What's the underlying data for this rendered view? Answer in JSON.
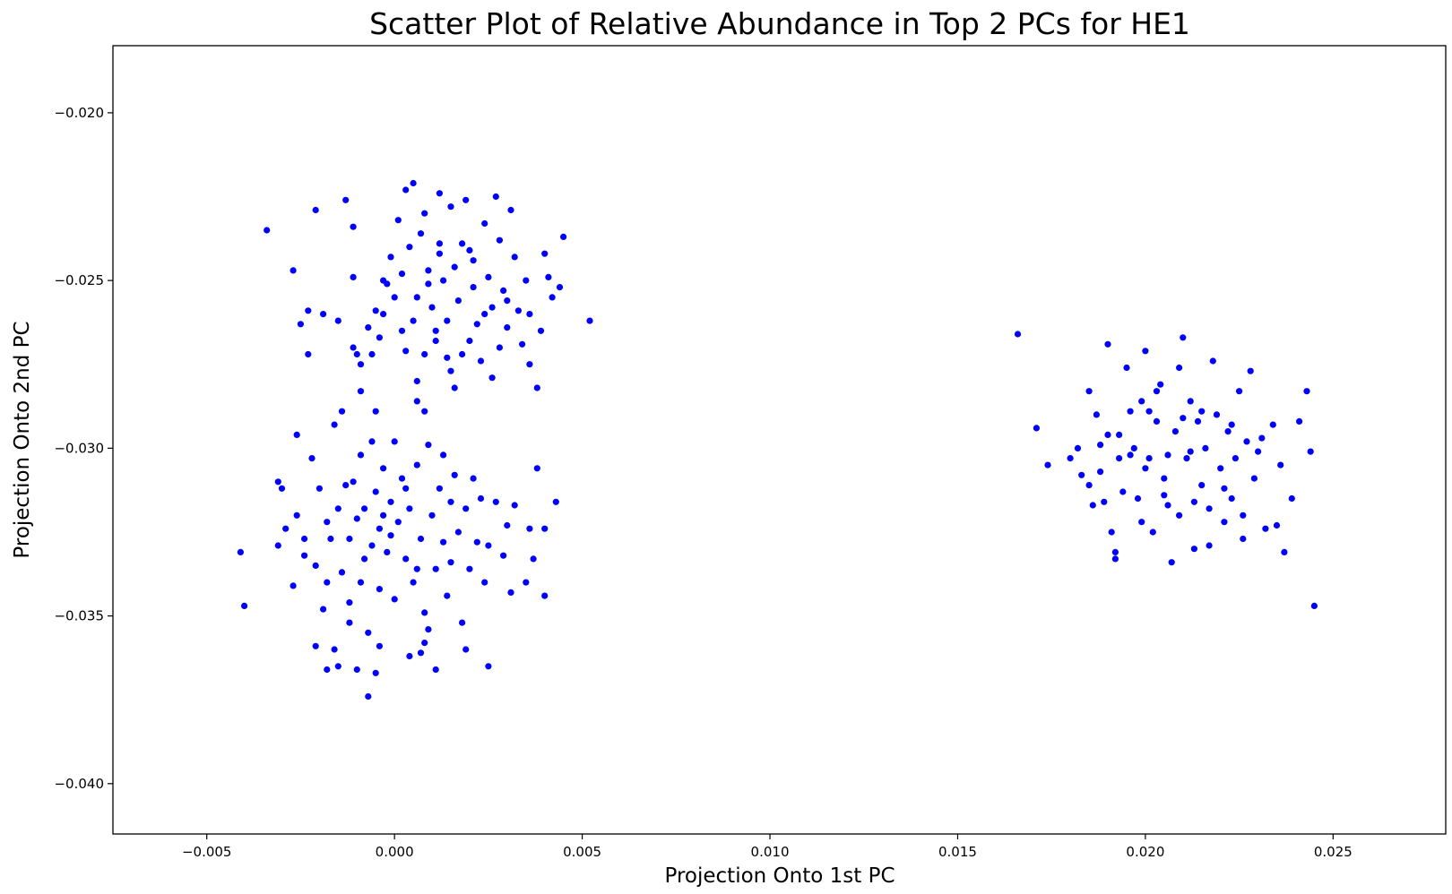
{
  "chart_data": {
    "type": "scatter",
    "title": "Scatter Plot of Relative Abundance in Top 2 PCs for HE1",
    "xlabel": "Projection Onto 1st PC",
    "ylabel": "Projection Onto 2nd PC",
    "xlim": [
      -0.0075,
      0.028
    ],
    "ylim": [
      -0.0415,
      -0.018
    ],
    "xticks": [
      -0.005,
      0.0,
      0.005,
      0.01,
      0.015,
      0.02,
      0.025
    ],
    "xtick_labels": [
      "−0.005",
      "0.000",
      "0.005",
      "0.010",
      "0.015",
      "0.020",
      "0.025"
    ],
    "yticks": [
      -0.02,
      -0.025,
      -0.03,
      -0.035,
      -0.04
    ],
    "ytick_labels": [
      "−0.020",
      "−0.025",
      "−0.030",
      "−0.035",
      "−0.040"
    ],
    "grid": false,
    "legend": false,
    "marker_color": "#0000ff",
    "series": [
      {
        "points": [
          [
            -0.0034,
            -0.0235
          ],
          [
            -0.0027,
            -0.0247
          ],
          [
            -0.0021,
            -0.0229
          ],
          [
            -0.0013,
            -0.0226
          ],
          [
            -0.0011,
            -0.0249
          ],
          [
            -0.0011,
            -0.0234
          ],
          [
            -0.0023,
            -0.0259
          ],
          [
            -0.0025,
            -0.0263
          ],
          [
            -0.0019,
            -0.026
          ],
          [
            -0.0015,
            -0.0262
          ],
          [
            -0.0023,
            -0.0272
          ],
          [
            -0.0011,
            -0.027
          ],
          [
            -0.001,
            -0.0272
          ],
          [
            -0.0009,
            -0.0275
          ],
          [
            -0.0007,
            -0.0264
          ],
          [
            -0.0005,
            -0.0259
          ],
          [
            -0.0004,
            -0.0267
          ],
          [
            -0.0003,
            -0.026
          ],
          [
            -0.0002,
            -0.0251
          ],
          [
            -0.0001,
            -0.0243
          ],
          [
            0.0,
            -0.0255
          ],
          [
            0.0001,
            -0.0232
          ],
          [
            0.0002,
            -0.0248
          ],
          [
            0.0003,
            -0.0223
          ],
          [
            0.0004,
            -0.024
          ],
          [
            0.0005,
            -0.0262
          ],
          [
            0.0005,
            -0.0221
          ],
          [
            0.0006,
            -0.0255
          ],
          [
            0.0007,
            -0.0236
          ],
          [
            0.0008,
            -0.023
          ],
          [
            0.0009,
            -0.0247
          ],
          [
            0.001,
            -0.0258
          ],
          [
            0.0011,
            -0.0265
          ],
          [
            0.0012,
            -0.0224
          ],
          [
            0.0012,
            -0.0239
          ],
          [
            0.0013,
            -0.025
          ],
          [
            0.0014,
            -0.0262
          ],
          [
            0.0015,
            -0.0228
          ],
          [
            0.0016,
            -0.0246
          ],
          [
            0.0017,
            -0.0256
          ],
          [
            0.0018,
            -0.0272
          ],
          [
            0.0019,
            -0.0226
          ],
          [
            0.002,
            -0.0241
          ],
          [
            0.0021,
            -0.0252
          ],
          [
            0.0022,
            -0.0263
          ],
          [
            0.0023,
            -0.0274
          ],
          [
            0.0024,
            -0.0233
          ],
          [
            0.0025,
            -0.0249
          ],
          [
            0.0026,
            -0.0258
          ],
          [
            0.0027,
            -0.0225
          ],
          [
            0.0028,
            -0.0238
          ],
          [
            0.0029,
            -0.0253
          ],
          [
            0.003,
            -0.0264
          ],
          [
            0.0031,
            -0.0229
          ],
          [
            0.0032,
            -0.0243
          ],
          [
            0.0033,
            -0.0259
          ],
          [
            0.0035,
            -0.025
          ],
          [
            0.0036,
            -0.0275
          ],
          [
            0.0038,
            -0.0282
          ],
          [
            0.0039,
            -0.0265
          ],
          [
            0.004,
            -0.0242
          ],
          [
            0.0041,
            -0.0249
          ],
          [
            0.0042,
            -0.0255
          ],
          [
            0.0044,
            -0.0252
          ],
          [
            0.0045,
            -0.0237
          ],
          [
            0.0052,
            -0.0262
          ],
          [
            0.0003,
            -0.0271
          ],
          [
            0.0006,
            -0.028
          ],
          [
            0.0008,
            -0.0272
          ],
          [
            0.0011,
            -0.0268
          ],
          [
            0.0015,
            -0.0277
          ],
          [
            0.0016,
            -0.0282
          ],
          [
            0.002,
            -0.0268
          ],
          [
            0.0026,
            -0.0279
          ],
          [
            0.0028,
            -0.027
          ],
          [
            0.0034,
            -0.0269
          ],
          [
            0.0006,
            -0.0286
          ],
          [
            0.0008,
            -0.0289
          ],
          [
            -0.0009,
            -0.0283
          ],
          [
            -0.0003,
            -0.025
          ],
          [
            0.0012,
            -0.0242
          ],
          [
            0.0018,
            -0.0239
          ],
          [
            0.0024,
            -0.026
          ],
          [
            0.0009,
            -0.0251
          ],
          [
            0.003,
            -0.0256
          ],
          [
            0.0036,
            -0.026
          ],
          [
            0.0002,
            -0.0265
          ],
          [
            0.0014,
            -0.0273
          ],
          [
            -0.0006,
            -0.0272
          ],
          [
            0.0021,
            -0.0244
          ],
          [
            -0.0041,
            -0.0331
          ],
          [
            -0.004,
            -0.0347
          ],
          [
            -0.0031,
            -0.031
          ],
          [
            -0.003,
            -0.0312
          ],
          [
            -0.0031,
            -0.0329
          ],
          [
            -0.0029,
            -0.0324
          ],
          [
            -0.0027,
            -0.0341
          ],
          [
            -0.0026,
            -0.0296
          ],
          [
            -0.0026,
            -0.032
          ],
          [
            -0.0024,
            -0.0327
          ],
          [
            -0.0022,
            -0.0303
          ],
          [
            -0.0021,
            -0.0335
          ],
          [
            -0.002,
            -0.0312
          ],
          [
            -0.0019,
            -0.0348
          ],
          [
            -0.0018,
            -0.0322
          ],
          [
            -0.0017,
            -0.0327
          ],
          [
            -0.0016,
            -0.0293
          ],
          [
            -0.0016,
            -0.036
          ],
          [
            -0.0015,
            -0.0318
          ],
          [
            -0.0014,
            -0.0289
          ],
          [
            -0.0014,
            -0.0337
          ],
          [
            -0.0013,
            -0.0311
          ],
          [
            -0.0012,
            -0.0346
          ],
          [
            -0.0012,
            -0.0327
          ],
          [
            -0.0011,
            -0.031
          ],
          [
            -0.001,
            -0.0321
          ],
          [
            -0.0009,
            -0.0302
          ],
          [
            -0.0009,
            -0.034
          ],
          [
            -0.0008,
            -0.0318
          ],
          [
            -0.0007,
            -0.0355
          ],
          [
            -0.0006,
            -0.0298
          ],
          [
            -0.0006,
            -0.0329
          ],
          [
            -0.0005,
            -0.0313
          ],
          [
            -0.0004,
            -0.0342
          ],
          [
            -0.0004,
            -0.0324
          ],
          [
            -0.0003,
            -0.0306
          ],
          [
            -0.0002,
            -0.0331
          ],
          [
            -0.0001,
            -0.0316
          ],
          [
            0.0,
            -0.0345
          ],
          [
            0.0001,
            -0.0322
          ],
          [
            0.0002,
            -0.0309
          ],
          [
            0.0003,
            -0.0333
          ],
          [
            0.0004,
            -0.0318
          ],
          [
            0.0005,
            -0.034
          ],
          [
            0.0006,
            -0.0305
          ],
          [
            0.0007,
            -0.0327
          ],
          [
            0.0008,
            -0.0349
          ],
          [
            0.0009,
            -0.0299
          ],
          [
            0.001,
            -0.032
          ],
          [
            0.0011,
            -0.0336
          ],
          [
            0.0012,
            -0.0312
          ],
          [
            0.0013,
            -0.0328
          ],
          [
            0.0014,
            -0.0344
          ],
          [
            0.0015,
            -0.0316
          ],
          [
            0.0016,
            -0.0308
          ],
          [
            0.0017,
            -0.0325
          ],
          [
            0.0018,
            -0.0352
          ],
          [
            0.0019,
            -0.0318
          ],
          [
            0.002,
            -0.0336
          ],
          [
            0.0021,
            -0.0309
          ],
          [
            0.0022,
            -0.0328
          ],
          [
            0.0023,
            -0.0315
          ],
          [
            0.0024,
            -0.034
          ],
          [
            0.0025,
            -0.0329
          ],
          [
            0.0027,
            -0.0316
          ],
          [
            0.0029,
            -0.0332
          ],
          [
            0.003,
            -0.0323
          ],
          [
            0.0031,
            -0.0343
          ],
          [
            0.0032,
            -0.0317
          ],
          [
            0.0036,
            -0.0324
          ],
          [
            0.0037,
            -0.0333
          ],
          [
            0.0038,
            -0.0306
          ],
          [
            0.004,
            -0.0324
          ],
          [
            0.004,
            -0.0344
          ],
          [
            0.0043,
            -0.0316
          ],
          [
            0.0035,
            -0.034
          ],
          [
            -0.0021,
            -0.0359
          ],
          [
            -0.0018,
            -0.0366
          ],
          [
            -0.0015,
            -0.0365
          ],
          [
            -0.0007,
            -0.0374
          ],
          [
            -0.0005,
            -0.0367
          ],
          [
            -0.0004,
            -0.0359
          ],
          [
            0.0007,
            -0.0361
          ],
          [
            0.0008,
            -0.0358
          ],
          [
            0.0011,
            -0.0366
          ],
          [
            0.0019,
            -0.036
          ],
          [
            0.0025,
            -0.0365
          ],
          [
            -0.0018,
            -0.034
          ],
          [
            -0.0024,
            -0.0332
          ],
          [
            -0.001,
            -0.0366
          ],
          [
            0.0004,
            -0.0362
          ],
          [
            0.0009,
            -0.0354
          ],
          [
            -0.0012,
            -0.0352
          ],
          [
            0.0,
            -0.0298
          ],
          [
            -0.0005,
            -0.0289
          ],
          [
            0.0013,
            -0.0302
          ],
          [
            -0.0001,
            -0.0326
          ],
          [
            -0.0008,
            -0.0333
          ],
          [
            0.0006,
            -0.0336
          ],
          [
            -0.0003,
            -0.032
          ],
          [
            0.0003,
            -0.0312
          ],
          [
            0.0015,
            -0.0334
          ],
          [
            0.0166,
            -0.0266
          ],
          [
            0.0171,
            -0.0294
          ],
          [
            0.0174,
            -0.0305
          ],
          [
            0.018,
            -0.0303
          ],
          [
            0.0182,
            -0.03
          ],
          [
            0.0185,
            -0.0283
          ],
          [
            0.0185,
            -0.0311
          ],
          [
            0.0186,
            -0.0317
          ],
          [
            0.0187,
            -0.029
          ],
          [
            0.0188,
            -0.0307
          ],
          [
            0.0189,
            -0.0316
          ],
          [
            0.019,
            -0.0269
          ],
          [
            0.019,
            -0.0296
          ],
          [
            0.0191,
            -0.0325
          ],
          [
            0.0192,
            -0.0331
          ],
          [
            0.0192,
            -0.0333
          ],
          [
            0.0193,
            -0.0303
          ],
          [
            0.0194,
            -0.0313
          ],
          [
            0.0195,
            -0.0276
          ],
          [
            0.0196,
            -0.0289
          ],
          [
            0.0197,
            -0.03
          ],
          [
            0.0198,
            -0.0315
          ],
          [
            0.0199,
            -0.0286
          ],
          [
            0.02,
            -0.0271
          ],
          [
            0.0201,
            -0.0303
          ],
          [
            0.0202,
            -0.0325
          ],
          [
            0.0203,
            -0.0292
          ],
          [
            0.0204,
            -0.0281
          ],
          [
            0.0205,
            -0.0309
          ],
          [
            0.0206,
            -0.0317
          ],
          [
            0.0207,
            -0.0334
          ],
          [
            0.0208,
            -0.0295
          ],
          [
            0.0209,
            -0.0276
          ],
          [
            0.021,
            -0.0267
          ],
          [
            0.0211,
            -0.0303
          ],
          [
            0.0212,
            -0.0286
          ],
          [
            0.0213,
            -0.033
          ],
          [
            0.0214,
            -0.0292
          ],
          [
            0.0215,
            -0.0311
          ],
          [
            0.0216,
            -0.03
          ],
          [
            0.0217,
            -0.0318
          ],
          [
            0.0218,
            -0.0274
          ],
          [
            0.0219,
            -0.029
          ],
          [
            0.022,
            -0.0306
          ],
          [
            0.0221,
            -0.0322
          ],
          [
            0.0222,
            -0.0295
          ],
          [
            0.0223,
            -0.0315
          ],
          [
            0.0224,
            -0.0303
          ],
          [
            0.0225,
            -0.0283
          ],
          [
            0.0226,
            -0.032
          ],
          [
            0.0227,
            -0.0298
          ],
          [
            0.0228,
            -0.0277
          ],
          [
            0.0229,
            -0.0309
          ],
          [
            0.0231,
            -0.0297
          ],
          [
            0.0232,
            -0.0324
          ],
          [
            0.0234,
            -0.0293
          ],
          [
            0.0236,
            -0.0305
          ],
          [
            0.0237,
            -0.0331
          ],
          [
            0.0239,
            -0.0315
          ],
          [
            0.0241,
            -0.0292
          ],
          [
            0.0243,
            -0.0283
          ],
          [
            0.0244,
            -0.0301
          ],
          [
            0.0245,
            -0.0347
          ],
          [
            0.02,
            -0.0306
          ],
          [
            0.0206,
            -0.0302
          ],
          [
            0.0212,
            -0.0301
          ],
          [
            0.0217,
            -0.0329
          ],
          [
            0.0223,
            -0.0293
          ],
          [
            0.0196,
            -0.0302
          ],
          [
            0.0203,
            -0.0283
          ],
          [
            0.021,
            -0.0291
          ],
          [
            0.0226,
            -0.0327
          ],
          [
            0.0209,
            -0.032
          ],
          [
            0.0215,
            -0.0289
          ],
          [
            0.0221,
            -0.0312
          ],
          [
            0.0193,
            -0.0296
          ],
          [
            0.0199,
            -0.0322
          ],
          [
            0.0205,
            -0.0314
          ],
          [
            0.0183,
            -0.0308
          ],
          [
            0.0188,
            -0.0299
          ],
          [
            0.023,
            -0.0301
          ],
          [
            0.0235,
            -0.0323
          ],
          [
            0.0201,
            -0.0289
          ],
          [
            0.0213,
            -0.0316
          ]
        ]
      }
    ]
  }
}
